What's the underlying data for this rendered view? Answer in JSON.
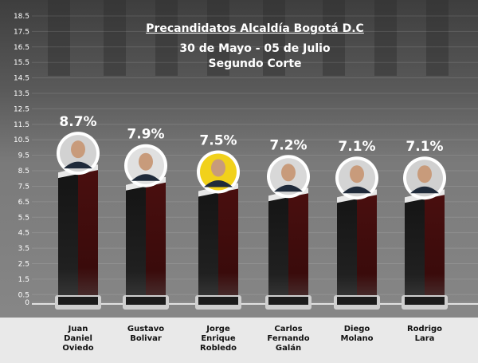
{
  "chart_data": {
    "type": "bar",
    "title": "Precandidatos Alcaldía Bogotá D.C",
    "subtitle": "30 de Mayo - 05 de Julio",
    "subtitle2": "Segundo Corte",
    "categories": [
      "Juan\nDaniel\nOviedo",
      "Gustavo\nBolivar",
      "Jorge\nEnrique\nRobledo",
      "Carlos\nFernando\nGalán",
      "Diego\nMolano",
      "Rodrigo\nLara"
    ],
    "values": [
      8.7,
      7.9,
      7.5,
      7.2,
      7.1,
      7.1
    ],
    "value_labels": [
      "8.7%",
      "7.9%",
      "7.5%",
      "7.2%",
      "7.1%",
      "7.1%"
    ],
    "ylim": [
      0,
      18.5
    ],
    "yticks": [
      "0",
      "0.5",
      "1.5",
      "2.5",
      "3.5",
      "4.5",
      "5.5",
      "6.5",
      "7.5",
      "8.5",
      "9.5",
      "10.5",
      "11.5",
      "12.5",
      "13.5",
      "14.5",
      "15.5",
      "16.5",
      "17.5",
      "18.5"
    ],
    "grid": true,
    "colors": {
      "bar_left": "#141414",
      "bar_right": "#4a0f0f",
      "label": "#ffffff"
    }
  }
}
